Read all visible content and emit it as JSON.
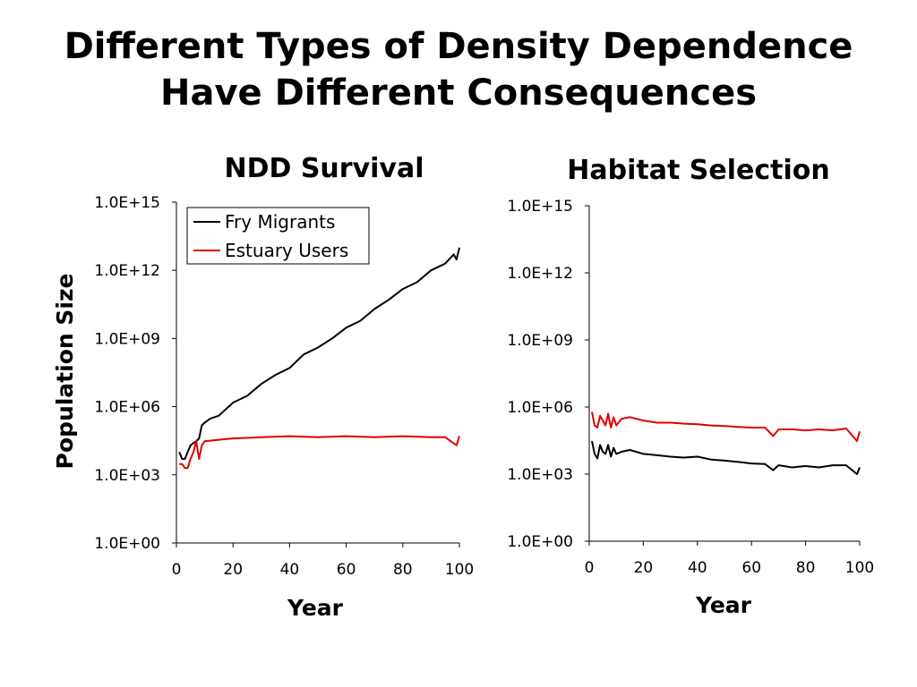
{
  "slide": {
    "title_line1": "Different Types of Density Dependence",
    "title_line2": "Have Different Consequences"
  },
  "colors": {
    "fry_migrants": "#000000",
    "estuary_users": "#e00000",
    "axis": "#000000"
  },
  "chart_data": [
    {
      "type": "line",
      "title": "NDD Survival",
      "xlabel": "Year",
      "ylabel": "Population Size",
      "y_scale": "log10",
      "xlim": [
        0,
        100
      ],
      "ylim": [
        1,
        1000000000000000.0
      ],
      "x_ticks": [
        "0",
        "20",
        "40",
        "60",
        "80",
        "100"
      ],
      "y_ticks": [
        "1.0E+00",
        "1.0E+03",
        "1.0E+06",
        "1.0E+09",
        "1.0E+12",
        "1.0E+15"
      ],
      "grid": false,
      "legend": "top-left",
      "series": [
        {
          "name": "Fry Migrants",
          "x": [
            1,
            2,
            3,
            4,
            5,
            6,
            7,
            8,
            9,
            10,
            12,
            15,
            20,
            25,
            30,
            35,
            40,
            45,
            50,
            55,
            60,
            65,
            70,
            75,
            80,
            85,
            90,
            95,
            98,
            99,
            100
          ],
          "y": [
            10000.0,
            5000.0,
            5000.0,
            10000.0,
            20000.0,
            25000.0,
            30000.0,
            40000.0,
            150000.0,
            200000.0,
            300000.0,
            400000.0,
            1500000.0,
            3000000.0,
            10000000.0,
            25000000.0,
            50000000.0,
            200000000.0,
            400000000.0,
            1000000000.0,
            3000000000.0,
            6000000000.0,
            20000000000.0,
            50000000000.0,
            150000000000.0,
            300000000000.0,
            1000000000000.0,
            2000000000000.0,
            5000000000000.0,
            3000000000000.0,
            10000000000000.0
          ]
        },
        {
          "name": "Estuary Users",
          "x": [
            1,
            2,
            3,
            4,
            5,
            6,
            7,
            8,
            9,
            10,
            15,
            20,
            30,
            40,
            50,
            60,
            70,
            80,
            90,
            95,
            99,
            100
          ],
          "y": [
            3000.0,
            3000.0,
            2000.0,
            2000.0,
            5000.0,
            10000.0,
            30000.0,
            5000.0,
            20000.0,
            30000.0,
            35000.0,
            40000.0,
            45000.0,
            50000.0,
            45000.0,
            50000.0,
            45000.0,
            50000.0,
            45000.0,
            45000.0,
            20000.0,
            50000.0
          ]
        }
      ]
    },
    {
      "type": "line",
      "title": "Habitat Selection",
      "xlabel": "Year",
      "ylabel": "",
      "y_scale": "log10",
      "xlim": [
        0,
        100
      ],
      "ylim": [
        1,
        1000000000000000.0
      ],
      "x_ticks": [
        "0",
        "20",
        "40",
        "60",
        "80",
        "100"
      ],
      "y_ticks": [
        "1.0E+00",
        "1.0E+03",
        "1.0E+06",
        "1.0E+09",
        "1.0E+12",
        "1.0E+15"
      ],
      "grid": false,
      "legend": "none",
      "series": [
        {
          "name": "Fry Migrants",
          "x": [
            1,
            2,
            3,
            4,
            5,
            6,
            7,
            8,
            9,
            10,
            12,
            15,
            20,
            25,
            30,
            35,
            40,
            45,
            50,
            55,
            60,
            65,
            68,
            70,
            75,
            80,
            85,
            90,
            95,
            99,
            100
          ],
          "y": [
            30000.0,
            8000.0,
            5000.0,
            20000.0,
            10000.0,
            8000.0,
            20000.0,
            6000.0,
            15000.0,
            8000.0,
            10000.0,
            12000.0,
            8000.0,
            7000.0,
            6000.0,
            5500.0,
            6000.0,
            4500.0,
            4000.0,
            3500.0,
            3000.0,
            2800.0,
            1500.0,
            2500.0,
            2000.0,
            2300.0,
            2000.0,
            2500.0,
            2500.0,
            1000.0,
            2000.0
          ]
        },
        {
          "name": "Estuary Users",
          "x": [
            1,
            2,
            3,
            4,
            5,
            6,
            7,
            8,
            9,
            10,
            12,
            15,
            20,
            25,
            30,
            35,
            40,
            45,
            50,
            55,
            60,
            65,
            68,
            70,
            75,
            80,
            85,
            90,
            95,
            99,
            100
          ],
          "y": [
            600000.0,
            150000.0,
            120000.0,
            400000.0,
            250000.0,
            150000.0,
            500000.0,
            120000.0,
            350000.0,
            150000.0,
            300000.0,
            350000.0,
            250000.0,
            200000.0,
            200000.0,
            180000.0,
            170000.0,
            150000.0,
            140000.0,
            130000.0,
            120000.0,
            120000.0,
            50000.0,
            100000.0,
            100000.0,
            90000.0,
            100000.0,
            90000.0,
            110000.0,
            30000.0,
            80000.0
          ]
        }
      ]
    }
  ]
}
